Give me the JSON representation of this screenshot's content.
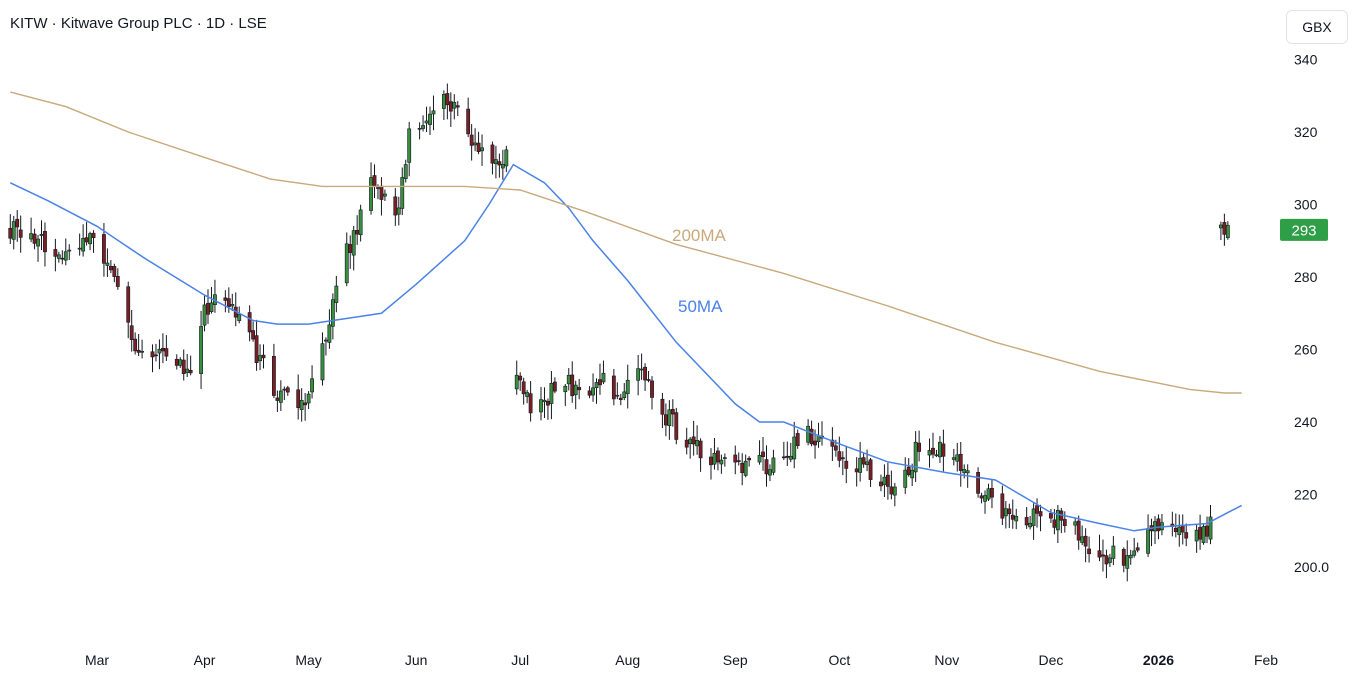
{
  "header": {
    "title": "KITW · Kitwave Group PLC · 1D · LSE",
    "currency": "GBX"
  },
  "colors": {
    "up": "#388e3c",
    "down": "#7a1f24",
    "ma50": "#4a82e8",
    "ma200": "#c9a97b",
    "last_price_bg": "#2e9e47"
  },
  "chart_data": {
    "type": "candlestick",
    "title": "KITW · Kitwave Group PLC · 1D · LSE",
    "ylim": [
      186,
      347
    ],
    "y_ticks": [
      "200.0",
      "220",
      "240",
      "260",
      "280",
      "300",
      "320",
      "340"
    ],
    "y_tick_values": [
      200,
      220,
      240,
      260,
      280,
      300,
      320,
      340
    ],
    "x_range": [
      "2025-02-04",
      "2026-02-04"
    ],
    "x_ticks": [
      {
        "label": "Mar",
        "date": "2025-03-01",
        "bold": false
      },
      {
        "label": "Apr",
        "date": "2025-04-01",
        "bold": false
      },
      {
        "label": "May",
        "date": "2025-05-01",
        "bold": false
      },
      {
        "label": "Jun",
        "date": "2025-06-01",
        "bold": false
      },
      {
        "label": "Jul",
        "date": "2025-07-01",
        "bold": false
      },
      {
        "label": "Aug",
        "date": "2025-08-01",
        "bold": false
      },
      {
        "label": "Sep",
        "date": "2025-09-01",
        "bold": false
      },
      {
        "label": "Oct",
        "date": "2025-10-01",
        "bold": false
      },
      {
        "label": "Nov",
        "date": "2025-11-01",
        "bold": false
      },
      {
        "label": "Dec",
        "date": "2025-12-01",
        "bold": false
      },
      {
        "label": "2026",
        "date": "2026-01-01",
        "bold": true
      },
      {
        "label": "Feb",
        "date": "2026-02-01",
        "bold": false
      }
    ],
    "last_price": {
      "label": "293",
      "value": 293
    },
    "series": [
      {
        "name": "KITW",
        "type": "ohlc",
        "segments": [
          {
            "start": "2025-02-04",
            "end": "2025-06-29",
            "points": [
              [
                0,
                293
              ],
              [
                15,
                288
              ],
              [
                22,
                292
              ],
              [
                28,
                283
              ],
              [
                36,
                262
              ],
              [
                45,
                258
              ],
              [
                52,
                255
              ],
              [
                56,
                270
              ],
              [
                61,
                275
              ],
              [
                66,
                268
              ],
              [
                71,
                258
              ],
              [
                76,
                250
              ],
              [
                82,
                243
              ],
              [
                86,
                248
              ],
              [
                90,
                262
              ],
              [
                97,
                287
              ],
              [
                104,
                305
              ],
              [
                109,
                300
              ],
              [
                112,
                299
              ],
              [
                115,
                318
              ],
              [
                121,
                325
              ],
              [
                125,
                331
              ],
              [
                132,
                320
              ],
              [
                139,
                314
              ],
              [
                144,
                313
              ],
              [
                151,
                321
              ],
              [
                155,
                323
              ],
              [
                159,
                332
              ],
              [
                162,
                332
              ],
              [
                165,
                324
              ]
            ]
          },
          {
            "start": "2025-06-30",
            "end": "2026-01-18",
            "points": [
              [
                0,
                250
              ],
              [
                6,
                242
              ],
              [
                12,
                253
              ],
              [
                18,
                247
              ],
              [
                24,
                252
              ],
              [
                30,
                248
              ],
              [
                34,
                256
              ],
              [
                42,
                243
              ],
              [
                46,
                238
              ],
              [
                52,
                232
              ],
              [
                59,
                228
              ],
              [
                66,
                229
              ],
              [
                72,
                228
              ],
              [
                78,
                232
              ],
              [
                84,
                236
              ],
              [
                90,
                234
              ],
              [
                95,
                230
              ],
              [
                99,
                228
              ],
              [
                106,
                222
              ],
              [
                112,
                225
              ],
              [
                117,
                236
              ],
              [
                123,
                232
              ],
              [
                127,
                228
              ],
              [
                134,
                221
              ],
              [
                140,
                216
              ],
              [
                146,
                214
              ],
              [
                152,
                213
              ],
              [
                159,
                213
              ],
              [
                165,
                206
              ],
              [
                171,
                203
              ],
              [
                178,
                203
              ],
              [
                184,
                210
              ],
              [
                190,
                212
              ],
              [
                195,
                210
              ],
              [
                203,
                212
              ],
              [
                210,
                214
              ],
              [
                217,
                216
              ],
              [
                224,
                228
              ],
              [
                230,
                227
              ],
              [
                237,
                218
              ],
              [
                244,
                218
              ],
              [
                248,
                214
              ],
              [
                252,
                213
              ]
            ]
          },
          {
            "start": "2026-01-19",
            "end": "2026-01-21",
            "points": [
              [
                0,
                293
              ],
              [
                1,
                293
              ],
              [
                2,
                293
              ]
            ]
          }
        ]
      },
      {
        "name": "50MA",
        "type": "line",
        "label": "50MA",
        "points": [
          [
            "2025-02-04",
            306
          ],
          [
            "2025-02-15",
            301
          ],
          [
            "2025-03-01",
            294
          ],
          [
            "2025-03-15",
            285
          ],
          [
            "2025-04-01",
            275
          ],
          [
            "2025-04-15",
            268
          ],
          [
            "2025-04-22",
            267
          ],
          [
            "2025-05-01",
            267
          ],
          [
            "2025-05-15",
            269
          ],
          [
            "2025-05-22",
            270
          ],
          [
            "2025-06-01",
            278
          ],
          [
            "2025-06-15",
            290
          ],
          [
            "2025-06-22",
            300
          ],
          [
            "2025-06-29",
            311
          ],
          [
            "2025-07-08",
            306
          ],
          [
            "2025-07-15",
            299
          ],
          [
            "2025-07-22",
            290
          ],
          [
            "2025-08-01",
            279
          ],
          [
            "2025-08-15",
            262
          ],
          [
            "2025-09-01",
            245
          ],
          [
            "2025-09-08",
            240
          ],
          [
            "2025-09-15",
            240
          ],
          [
            "2025-10-01",
            234
          ],
          [
            "2025-10-15",
            229
          ],
          [
            "2025-11-01",
            226
          ],
          [
            "2025-11-15",
            224
          ],
          [
            "2025-12-01",
            215
          ],
          [
            "2025-12-15",
            212
          ],
          [
            "2025-12-25",
            210
          ],
          [
            "2026-01-01",
            211
          ],
          [
            "2026-01-15",
            212
          ],
          [
            "2026-01-21",
            215
          ],
          [
            "2026-01-25",
            217
          ]
        ]
      },
      {
        "name": "200MA",
        "type": "line",
        "label": "200MA",
        "points": [
          [
            "2025-02-04",
            331
          ],
          [
            "2025-02-20",
            327
          ],
          [
            "2025-03-10",
            320
          ],
          [
            "2025-04-01",
            313
          ],
          [
            "2025-04-20",
            307
          ],
          [
            "2025-05-05",
            305
          ],
          [
            "2025-05-25",
            305
          ],
          [
            "2025-06-15",
            305
          ],
          [
            "2025-07-01",
            304
          ],
          [
            "2025-07-20",
            298
          ],
          [
            "2025-08-15",
            289
          ],
          [
            "2025-09-15",
            281
          ],
          [
            "2025-10-15",
            272
          ],
          [
            "2025-11-15",
            262
          ],
          [
            "2025-12-15",
            254
          ],
          [
            "2026-01-10",
            249
          ],
          [
            "2026-01-20",
            248
          ],
          [
            "2026-01-25",
            248
          ]
        ]
      }
    ]
  }
}
